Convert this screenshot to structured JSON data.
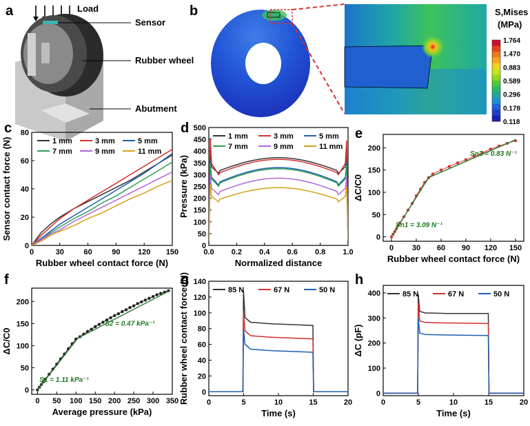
{
  "figure": {
    "panel_labels": [
      "a",
      "b",
      "c",
      "d",
      "e",
      "f",
      "g",
      "h"
    ],
    "schematic": {
      "load": "Load",
      "sensor": "Sensor",
      "rubber_wheel": "Rubber wheel",
      "abutment": "Abutment"
    },
    "colorbar": {
      "title_line1": "S,Mises",
      "title_line2": "(MPa)",
      "values": [
        "1.764",
        "1.470",
        "0.883",
        "0.589",
        "0.296",
        "0.178",
        "0.118"
      ],
      "colors": [
        "#c8102e",
        "#e8401c",
        "#f07a1a",
        "#f5a81e",
        "#f2d21c",
        "#c9e51d",
        "#8fd822",
        "#4ec83a",
        "#2ab56a",
        "#1fa7a5",
        "#1c8fd0",
        "#1e63d8",
        "#1f3fd0",
        "#1a1fb5"
      ]
    }
  },
  "chart_data": [
    {
      "id": "c",
      "type": "line",
      "xlabel": "Rubber wheel contact force (N)",
      "ylabel": "Sensor contact force (N)",
      "xlim": [
        0,
        150
      ],
      "ylim": [
        0,
        80
      ],
      "xticks": [
        0,
        30,
        60,
        90,
        120,
        150
      ],
      "yticks": [
        0,
        20,
        40,
        60,
        80
      ],
      "legend": "top-left",
      "legend_cols": 3,
      "series": [
        {
          "name": "1 mm",
          "color": "#333333",
          "x": [
            0,
            10,
            20,
            30,
            45,
            60,
            75,
            90,
            105,
            120,
            135,
            150
          ],
          "y": [
            0,
            9,
            15,
            20,
            26,
            31,
            36,
            41,
            46,
            52,
            58,
            64
          ]
        },
        {
          "name": "3 mm",
          "color": "#d62f2f",
          "x": [
            0,
            10,
            20,
            30,
            45,
            60,
            75,
            90,
            105,
            120,
            135,
            150
          ],
          "y": [
            0,
            7,
            13,
            19,
            26,
            32,
            38,
            44,
            50,
            56,
            62,
            68
          ]
        },
        {
          "name": "5 mm",
          "color": "#1f5fb0",
          "x": [
            0,
            10,
            20,
            30,
            45,
            60,
            75,
            90,
            105,
            120,
            135,
            150
          ],
          "y": [
            0,
            5,
            10,
            15,
            21,
            27,
            33,
            39,
            45,
            51,
            58,
            65
          ]
        },
        {
          "name": "7 mm",
          "color": "#2e9e55",
          "x": [
            0,
            10,
            20,
            30,
            45,
            60,
            75,
            90,
            105,
            120,
            135,
            150
          ],
          "y": [
            0,
            4,
            9,
            13,
            19,
            24,
            30,
            35,
            41,
            47,
            53,
            59
          ]
        },
        {
          "name": "9 mm",
          "color": "#b266d6",
          "x": [
            0,
            10,
            20,
            30,
            45,
            60,
            75,
            90,
            105,
            120,
            135,
            150
          ],
          "y": [
            0,
            4,
            8,
            11,
            17,
            22,
            27,
            32,
            37,
            42,
            47,
            52
          ]
        },
        {
          "name": "11 mm",
          "color": "#d4a017",
          "x": [
            0,
            10,
            20,
            30,
            45,
            60,
            75,
            90,
            105,
            120,
            135,
            150
          ],
          "y": [
            0,
            3,
            7,
            10,
            14,
            19,
            23,
            28,
            33,
            37,
            42,
            46
          ]
        }
      ]
    },
    {
      "id": "d",
      "type": "line",
      "xlabel": "Normalized distance",
      "ylabel": "Pressure (kPa)",
      "xlim": [
        0,
        1.0
      ],
      "ylim": [
        0,
        500
      ],
      "xticks": [
        0.0,
        0.2,
        0.4,
        0.6,
        0.8,
        1.0
      ],
      "yticks": [
        0,
        50,
        100,
        150,
        200,
        250,
        300,
        350,
        400,
        450,
        500
      ],
      "legend": "top",
      "legend_cols": 3,
      "series": [
        {
          "name": "1 mm",
          "color": "#333333",
          "spike": 395,
          "edge": 300,
          "peak": 372
        },
        {
          "name": "3 mm",
          "color": "#d62f2f",
          "spike": 455,
          "edge": 290,
          "peak": 365
        },
        {
          "name": "5 mm",
          "color": "#1f5fb0",
          "spike": 360,
          "edge": 250,
          "peak": 330
        },
        {
          "name": "7 mm",
          "color": "#2e9e55",
          "spike": 350,
          "edge": 245,
          "peak": 325
        },
        {
          "name": "9 mm",
          "color": "#b266d6",
          "spike": 300,
          "edge": 210,
          "peak": 285
        },
        {
          "name": "11 mm",
          "color": "#d4a017",
          "spike": 260,
          "edge": 180,
          "peak": 245
        }
      ]
    },
    {
      "id": "e",
      "type": "scatter",
      "xlabel": "Rubber wheel contact force (N)",
      "ylabel": "ΔC/C0",
      "xlim": [
        -10,
        160
      ],
      "ylim": [
        -10,
        230
      ],
      "xticks": [
        0,
        30,
        60,
        90,
        120,
        150
      ],
      "yticks": [
        0,
        50,
        100,
        150,
        200
      ],
      "series": [
        {
          "name": "data",
          "color": "#d62f2f",
          "x": [
            0,
            2,
            4,
            6,
            8,
            10,
            15,
            20,
            25,
            30,
            35,
            40,
            45,
            50,
            60,
            70,
            80,
            90,
            100,
            110,
            120,
            130,
            140,
            150
          ],
          "y": [
            0,
            6,
            12,
            18,
            25,
            31,
            45,
            60,
            75,
            92,
            107,
            122,
            133,
            141,
            150,
            158,
            166,
            173,
            181,
            189,
            197,
            204,
            210,
            216
          ]
        },
        {
          "name": "fit",
          "color": "#2e7d32",
          "x": [
            0,
            45,
            150
          ],
          "y": [
            0,
            133,
            218
          ]
        }
      ],
      "annotations": [
        {
          "text": "Sn1 = 3.09 N⁻¹",
          "x": 5,
          "y": 22
        },
        {
          "text": "Sn2 = 0.83 N⁻¹",
          "x": 95,
          "y": 182
        }
      ]
    },
    {
      "id": "f",
      "type": "scatter",
      "xlabel": "Average pressure (kPa)",
      "ylabel": "ΔC/C0",
      "xlim": [
        -15,
        350
      ],
      "ylim": [
        -10,
        230
      ],
      "xticks": [
        0,
        50,
        100,
        150,
        200,
        250,
        300,
        350
      ],
      "yticks": [
        0,
        50,
        100,
        150,
        200
      ],
      "series": [
        {
          "name": "data",
          "color": "#222222",
          "x": [
            0,
            5,
            10,
            15,
            20,
            30,
            40,
            50,
            60,
            70,
            80,
            90,
            100,
            110,
            120,
            130,
            140,
            150,
            160,
            170,
            180,
            190,
            200,
            210,
            220,
            230,
            240,
            250,
            260,
            270,
            280,
            290,
            300,
            310,
            320,
            330,
            340
          ],
          "y": [
            0,
            6,
            12,
            18,
            24,
            35,
            47,
            58,
            70,
            81,
            93,
            104,
            115,
            120,
            126,
            132,
            137,
            143,
            148,
            153,
            158,
            163,
            168,
            172,
            177,
            181,
            186,
            190,
            195,
            199,
            203,
            207,
            211,
            215,
            218,
            221,
            224
          ]
        },
        {
          "name": "fit",
          "color": "#2e7d32",
          "x": [
            0,
            105,
            345
          ],
          "y": [
            0,
            117,
            225
          ]
        }
      ],
      "annotations": [
        {
          "text": "S1 = 1.11 kPa⁻¹",
          "x": 5,
          "y": 18
        },
        {
          "text": "S2 = 0.47 kPa⁻¹",
          "x": 175,
          "y": 145
        }
      ]
    },
    {
      "id": "g",
      "type": "line",
      "xlabel": "Time (s)",
      "ylabel": "Rubber wheel contact force (N)",
      "xlim": [
        0,
        20
      ],
      "ylim": [
        -5,
        140
      ],
      "xticks": [
        0,
        5,
        10,
        15,
        20
      ],
      "yticks": [
        0,
        20,
        40,
        60,
        80,
        100,
        120,
        140
      ],
      "legend": "top",
      "legend_cols": 3,
      "series": [
        {
          "name": "85 N",
          "color": "#333333",
          "spike": 128,
          "plateau": 86,
          "end": 84
        },
        {
          "name": "67 N",
          "color": "#d62f2f",
          "spike": 100,
          "plateau": 69,
          "end": 67
        },
        {
          "name": "50 N",
          "color": "#1f5fb0",
          "spike": 80,
          "plateau": 52,
          "end": 50
        }
      ]
    },
    {
      "id": "h",
      "type": "line",
      "xlabel": "Time (s)",
      "ylabel": "ΔC (pF)",
      "xlim": [
        0,
        20
      ],
      "ylim": [
        -10,
        430
      ],
      "xticks": [
        0,
        5,
        10,
        15,
        20
      ],
      "yticks": [
        0,
        100,
        200,
        300,
        400
      ],
      "legend": "top",
      "legend_cols": 3,
      "series": [
        {
          "name": "85 N",
          "color": "#333333",
          "spike": 395,
          "plateau": 318,
          "end": 318
        },
        {
          "name": "67 N",
          "color": "#d62f2f",
          "spike": 360,
          "plateau": 280,
          "end": 278
        },
        {
          "name": "50 N",
          "color": "#1f5fb0",
          "spike": 300,
          "plateau": 232,
          "end": 230
        }
      ]
    }
  ]
}
